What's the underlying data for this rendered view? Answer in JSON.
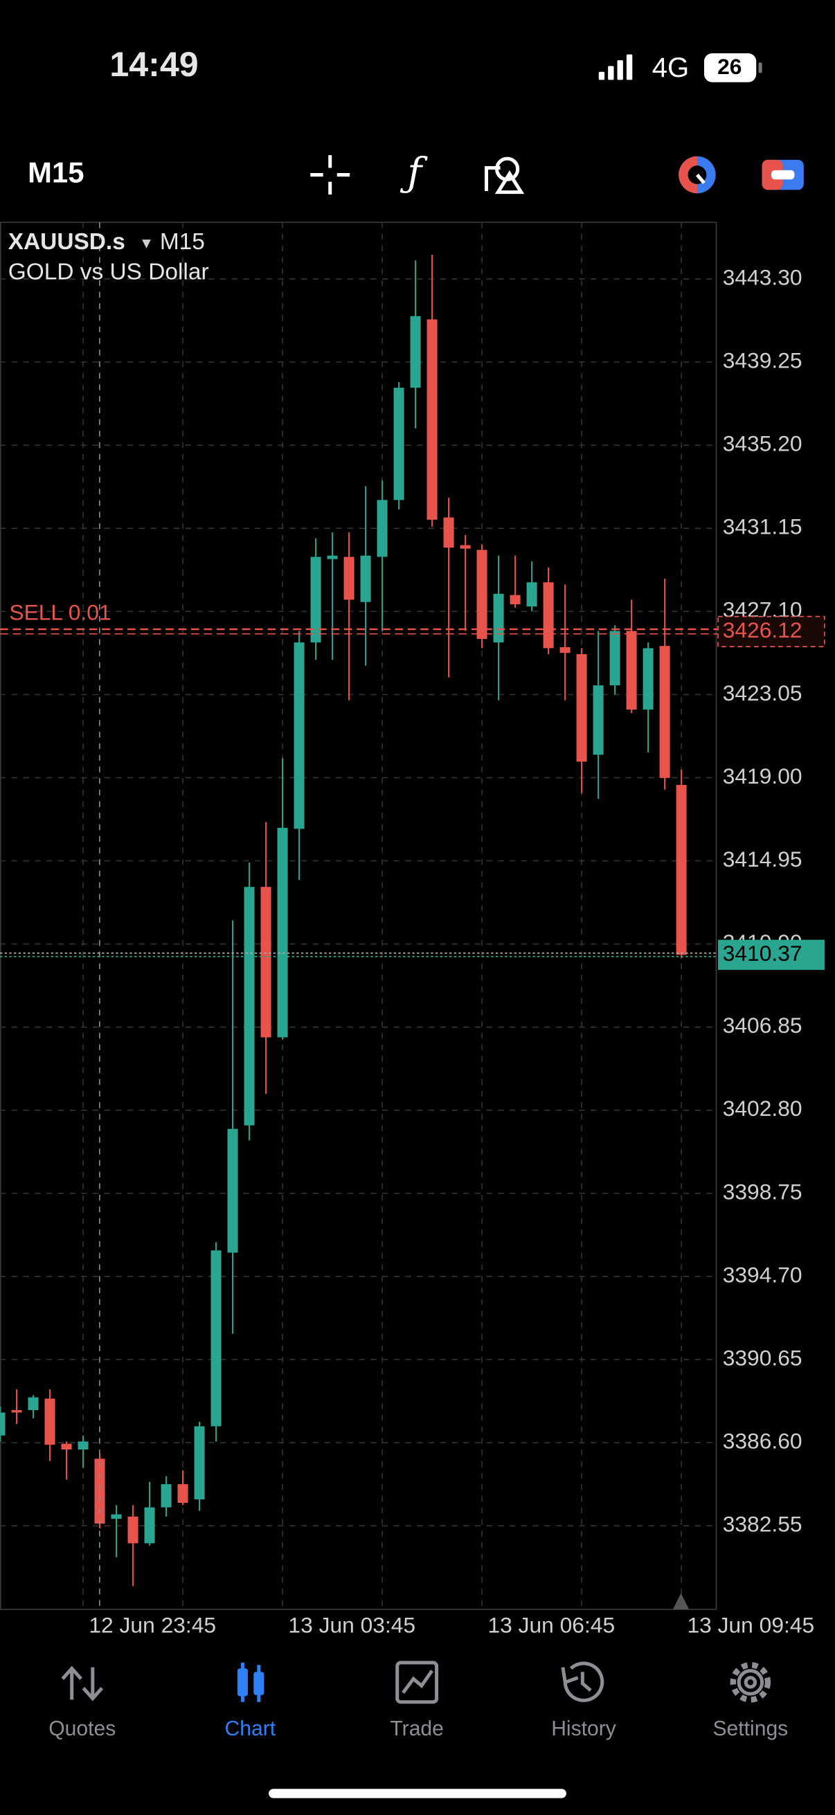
{
  "status_bar": {
    "time": "14:49",
    "network": "4G",
    "battery": "26"
  },
  "toolbar": {
    "timeframe": "M15"
  },
  "chart_data": {
    "type": "candlestick",
    "symbol": "XAUUSD.s",
    "timeframe": "M15",
    "subtitle": "GOLD vs US Dollar",
    "up_color": "#2aa58f",
    "down_color": "#e8534c",
    "grid": true,
    "categories": [
      null,
      null,
      null,
      null,
      null,
      "12 Jun 23:45",
      null,
      null,
      null,
      null,
      null,
      null,
      null,
      null,
      null,
      null,
      null,
      "13 Jun 03:45",
      null,
      null,
      null,
      null,
      null,
      null,
      null,
      null,
      null,
      null,
      null,
      "13 Jun 06:45",
      null,
      null,
      null,
      null,
      null,
      null,
      null,
      null,
      null,
      null,
      null,
      "13 Jun 09:45"
    ],
    "open": [
      3386.95,
      3388.19,
      3388.19,
      3388.75,
      3386.55,
      3386.27,
      3385.82,
      3382.89,
      3383.0,
      3381.7,
      3383.45,
      3384.58,
      3383.84,
      3387.4,
      3395.86,
      3402.06,
      3413.68,
      3406.35,
      3416.51,
      3425.59,
      3429.65,
      3429.76,
      3427.56,
      3429.76,
      3432.53,
      3438.0,
      3441.33,
      3431.68,
      3430.33,
      3430.1,
      3425.59,
      3427.9,
      3427.34,
      3428.52,
      3425.36,
      3425.02,
      3420.12,
      3423.5,
      3426.15,
      3422.32,
      3425.42,
      3418.65
    ],
    "high": [
      3388.36,
      3389.2,
      3388.92,
      3389.2,
      3386.66,
      3386.95,
      3386.1,
      3383.56,
      3383.56,
      3384.69,
      3384.97,
      3385.25,
      3387.62,
      3396.37,
      3412.05,
      3414.87,
      3416.84,
      3419.95,
      3426.15,
      3430.66,
      3430.95,
      3430.95,
      3433.2,
      3433.48,
      3438.28,
      3444.2,
      3444.48,
      3432.64,
      3430.83,
      3430.38,
      3429.82,
      3429.82,
      3429.54,
      3429.25,
      3428.41,
      3425.31,
      3426.15,
      3426.43,
      3427.67,
      3425.59,
      3428.69,
      3419.38
    ],
    "low": [
      3386.66,
      3387.51,
      3387.79,
      3385.71,
      3384.8,
      3385.37,
      3382.43,
      3381.02,
      3379.61,
      3381.59,
      3383.0,
      3383.56,
      3383.28,
      3386.66,
      3391.91,
      3401.33,
      3403.59,
      3406.24,
      3414.02,
      3424.74,
      3424.74,
      3422.77,
      3424.46,
      3426.15,
      3432.07,
      3436.02,
      3431.23,
      3423.89,
      3426.15,
      3425.31,
      3422.77,
      3427.28,
      3427.11,
      3425.02,
      3422.77,
      3418.25,
      3417.97,
      3423.05,
      3422.15,
      3420.23,
      3418.42,
      3410.2
    ],
    "close": [
      3388.07,
      3388.07,
      3388.81,
      3386.5,
      3386.27,
      3386.66,
      3382.66,
      3383.11,
      3381.7,
      3383.45,
      3384.58,
      3383.67,
      3387.4,
      3395.97,
      3401.89,
      3413.68,
      3406.35,
      3416.56,
      3425.59,
      3429.76,
      3429.82,
      3427.67,
      3429.82,
      3432.53,
      3438.0,
      3441.49,
      3431.57,
      3430.21,
      3430.16,
      3425.76,
      3427.96,
      3427.45,
      3428.52,
      3425.31,
      3425.08,
      3419.78,
      3423.5,
      3426.15,
      3422.32,
      3425.31,
      3418.99,
      3410.37
    ],
    "ylim": [
      3378.48,
      3446.06
    ],
    "yticks": [
      {
        "value": 3443.3,
        "label": "3443.30"
      },
      3439.25,
      {
        "value": 3435.2,
        "label": "3435.20"
      },
      3431.15,
      {
        "value": 3427.1,
        "label": "3427.10"
      },
      3423.05,
      {
        "value": 3419,
        "label": "3419.00"
      },
      3414.95,
      {
        "value": 3410.9,
        "label": "3410.90"
      },
      3406.85,
      {
        "value": 3402.8,
        "label": "3402.80"
      },
      3398.75,
      {
        "value": 3394.7,
        "label": "3394.70"
      },
      3390.65,
      {
        "value": 3386.6,
        "label": "3386.60"
      },
      3382.55
    ],
    "order_line": {
      "label": "SELL 0.01",
      "value": 3426.12,
      "color": "#e8534c"
    },
    "last_price": {
      "value": 3410.37,
      "color": "#2aa58f"
    }
  },
  "tab_bar": {
    "tabs": [
      "Quotes",
      "Chart",
      "Trade",
      "History",
      "Settings"
    ],
    "active": 1
  }
}
